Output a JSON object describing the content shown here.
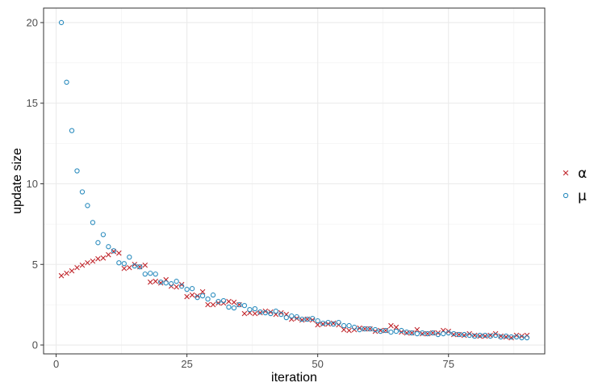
{
  "chart_data": {
    "type": "scatter",
    "title": "",
    "xlabel": "iteration",
    "ylabel": "update size",
    "xlim": [
      -2.4,
      93.4
    ],
    "ylim": [
      -0.55,
      20.9
    ],
    "x_ticks": [
      0,
      25,
      50,
      75
    ],
    "y_ticks": [
      0,
      5,
      10,
      15,
      20
    ],
    "grid": true,
    "legend_position": "right",
    "series": [
      {
        "name": "α",
        "marker": "cross",
        "color": "#c0262c",
        "x": [
          1,
          2,
          3,
          4,
          5,
          6,
          7,
          8,
          9,
          10,
          11,
          12,
          13,
          14,
          15,
          16,
          17,
          18,
          19,
          20,
          21,
          22,
          23,
          24,
          25,
          26,
          27,
          28,
          29,
          30,
          31,
          32,
          33,
          34,
          35,
          36,
          37,
          38,
          39,
          40,
          41,
          42,
          43,
          44,
          45,
          46,
          47,
          48,
          49,
          50,
          51,
          52,
          53,
          54,
          55,
          56,
          57,
          58,
          59,
          60,
          61,
          62,
          63,
          64,
          65,
          66,
          67,
          68,
          69,
          70,
          71,
          72,
          73,
          74,
          75,
          76,
          77,
          78,
          79,
          80,
          81,
          82,
          83,
          84,
          85,
          86,
          87,
          88,
          89,
          90
        ],
        "y": [
          4.3,
          4.45,
          4.6,
          4.8,
          4.95,
          5.1,
          5.2,
          5.35,
          5.4,
          5.6,
          5.8,
          5.7,
          4.75,
          4.8,
          5.0,
          4.85,
          4.95,
          3.9,
          3.95,
          3.85,
          4.05,
          3.65,
          3.6,
          3.75,
          3.0,
          3.1,
          3.05,
          3.3,
          2.5,
          2.5,
          2.6,
          2.6,
          2.7,
          2.65,
          2.5,
          1.95,
          2.0,
          1.95,
          2.0,
          2.1,
          2.05,
          1.9,
          2.0,
          1.9,
          1.6,
          1.65,
          1.55,
          1.6,
          1.55,
          1.25,
          1.3,
          1.3,
          1.35,
          1.25,
          0.95,
          0.9,
          0.95,
          1.05,
          1.0,
          1.0,
          0.85,
          0.9,
          0.9,
          1.2,
          1.1,
          0.8,
          0.75,
          0.75,
          0.95,
          0.7,
          0.7,
          0.75,
          0.75,
          0.9,
          0.85,
          0.65,
          0.65,
          0.6,
          0.7,
          0.6,
          0.55,
          0.55,
          0.6,
          0.7,
          0.55,
          0.5,
          0.45,
          0.6,
          0.55,
          0.6
        ]
      },
      {
        "name": "μ",
        "marker": "circle",
        "color": "#2b8cbe",
        "x": [
          1,
          2,
          3,
          4,
          5,
          6,
          7,
          8,
          9,
          10,
          11,
          12,
          13,
          14,
          15,
          16,
          17,
          18,
          19,
          20,
          21,
          22,
          23,
          24,
          25,
          26,
          27,
          28,
          29,
          30,
          31,
          32,
          33,
          34,
          35,
          36,
          37,
          38,
          39,
          40,
          41,
          42,
          43,
          44,
          45,
          46,
          47,
          48,
          49,
          50,
          51,
          52,
          53,
          54,
          55,
          56,
          57,
          58,
          59,
          60,
          61,
          62,
          63,
          64,
          65,
          66,
          67,
          68,
          69,
          70,
          71,
          72,
          73,
          74,
          75,
          76,
          77,
          78,
          79,
          80,
          81,
          82,
          83,
          84,
          85,
          86,
          87,
          88,
          89,
          90
        ],
        "y": [
          20.0,
          16.3,
          13.3,
          10.8,
          9.5,
          8.65,
          7.6,
          6.35,
          6.85,
          6.1,
          5.85,
          5.1,
          5.05,
          5.45,
          4.9,
          4.85,
          4.4,
          4.45,
          4.4,
          3.9,
          3.85,
          3.8,
          3.95,
          3.65,
          3.45,
          3.5,
          2.95,
          3.05,
          2.85,
          3.1,
          2.7,
          2.75,
          2.35,
          2.3,
          2.5,
          2.45,
          2.2,
          2.25,
          2.05,
          2.0,
          1.95,
          2.1,
          1.9,
          1.7,
          1.8,
          1.75,
          1.6,
          1.6,
          1.65,
          1.5,
          1.35,
          1.4,
          1.3,
          1.4,
          1.2,
          1.2,
          1.1,
          0.95,
          1.0,
          1.0,
          0.95,
          0.85,
          0.9,
          0.8,
          0.85,
          0.9,
          0.8,
          0.75,
          0.7,
          0.75,
          0.7,
          0.75,
          0.65,
          0.7,
          0.75,
          0.7,
          0.65,
          0.65,
          0.6,
          0.55,
          0.6,
          0.6,
          0.55,
          0.6,
          0.5,
          0.55,
          0.5,
          0.5,
          0.45,
          0.45
        ]
      }
    ]
  }
}
